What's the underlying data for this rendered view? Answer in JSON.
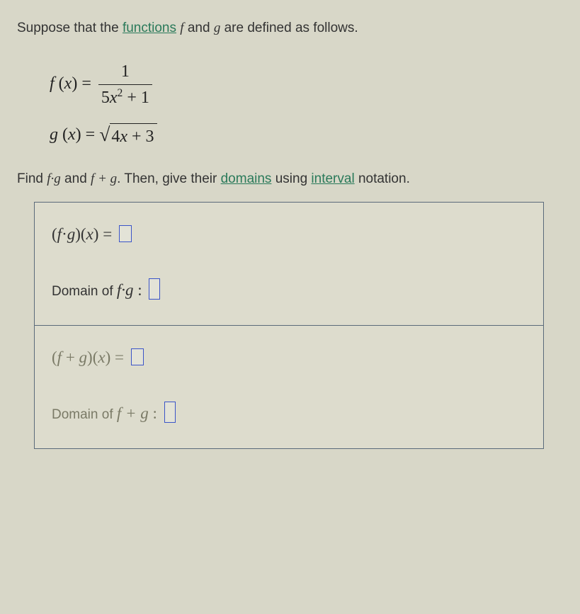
{
  "prompt_line": {
    "pre": "Suppose that the ",
    "link1": "functions",
    "mid1": " ",
    "f": "f",
    "and": " and ",
    "g": "g",
    "post": " are defined as follows."
  },
  "f_def": {
    "lhs_f": "f",
    "lhs_open": " (",
    "lhs_x": "x",
    "lhs_close": ") = ",
    "num": "1",
    "den_coef": "5",
    "den_x": "x",
    "den_exp": "2",
    "den_tail": " + 1"
  },
  "g_def": {
    "lhs_g": "g",
    "lhs_open": " (",
    "lhs_x": "x",
    "lhs_close": ") = ",
    "rad_coef": "4",
    "rad_x": "x",
    "rad_tail": " + 3"
  },
  "instruct": {
    "pre": "Find ",
    "fg": "f·g",
    "and": " and ",
    "fplusg": "f + g",
    "mid": ". Then, give their ",
    "link_domains": "domains",
    "using": " using ",
    "link_interval": "interval",
    "post": " notation."
  },
  "box": {
    "row1": {
      "open": "(",
      "f": "f",
      "dot": "·",
      "g": "g",
      "close": ")",
      "open2": "(",
      "x": "x",
      "close2": ")",
      "eq": " = "
    },
    "row2": {
      "label_pre": "Domain of ",
      "fg": "f·g",
      "colon": " : "
    },
    "row3": {
      "open": "(",
      "f": "f",
      "plus": " + ",
      "g": "g",
      "close": ")",
      "open2": "(",
      "x": "x",
      "close2": ")",
      "eq": " = "
    },
    "row4": {
      "label_pre": "Domain of ",
      "fplusg": "f + g",
      "colon": " : "
    }
  },
  "colors": {
    "bg": "#d8d7c8",
    "link": "#2a7a5a",
    "border": "#5a6a7a",
    "blank_border": "#3a54c8"
  }
}
